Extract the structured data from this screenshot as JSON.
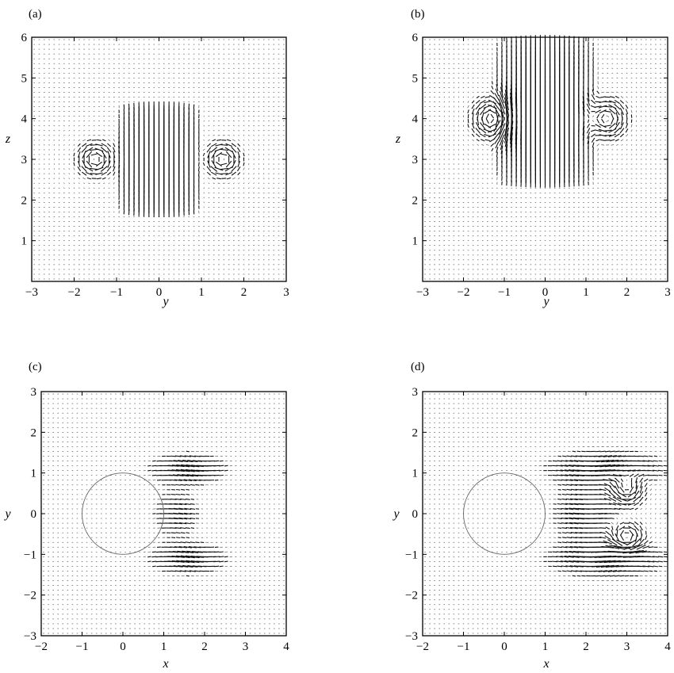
{
  "chart_data": [
    {
      "id": "a",
      "type": "quiver",
      "panel_label": "(a)",
      "xlabel": "y",
      "ylabel": "z",
      "xlim": [
        -3,
        3
      ],
      "ylim": [
        0,
        6
      ],
      "xticks": [
        -3,
        -2,
        -1,
        0,
        1,
        2,
        3
      ],
      "yticks": [
        1,
        2,
        3,
        4,
        5,
        6
      ],
      "xtick_labels": [
        "−3",
        "−2",
        "−1",
        "0",
        "1",
        "2",
        "3"
      ],
      "ytick_labels": [
        "1",
        "2",
        "3",
        "4",
        "5",
        "6"
      ],
      "grid_nx": 51,
      "grid_ny": 51,
      "features": [
        {
          "kind": "jet",
          "center": [
            0,
            3.3
          ],
          "half_width": 1.1,
          "bottom": 1.6,
          "top": 4.4,
          "peak_length": 0.6,
          "direction": "up"
        },
        {
          "kind": "vortex",
          "center": [
            -1.5,
            3.0
          ],
          "radius": 0.25
        },
        {
          "kind": "vortex",
          "center": [
            1.5,
            3.0
          ],
          "radius": 0.25
        }
      ],
      "circle": null
    },
    {
      "id": "b",
      "type": "quiver",
      "panel_label": "(b)",
      "xlabel": "y",
      "ylabel": "z",
      "xlim": [
        -3,
        3
      ],
      "ylim": [
        0,
        6
      ],
      "xticks": [
        -3,
        -2,
        -1,
        0,
        1,
        2,
        3
      ],
      "yticks": [
        1,
        2,
        3,
        4,
        5,
        6
      ],
      "xtick_labels": [
        "−3",
        "−2",
        "−1",
        "0",
        "1",
        "2",
        "3"
      ],
      "ytick_labels": [
        "1",
        "2",
        "3",
        "4",
        "5",
        "6"
      ],
      "grid_nx": 51,
      "grid_ny": 51,
      "features": [
        {
          "kind": "jet",
          "center": [
            0,
            4.2
          ],
          "half_width": 1.4,
          "bottom": 2.4,
          "top": 6.0,
          "peak_length": 0.6,
          "direction": "up"
        },
        {
          "kind": "vortex",
          "center": [
            -1.3,
            4.0
          ],
          "radius": 0.3
        },
        {
          "kind": "vortex",
          "center": [
            1.5,
            4.0
          ],
          "radius": 0.3
        }
      ],
      "circle": null
    },
    {
      "id": "c",
      "type": "quiver",
      "panel_label": "(c)",
      "xlabel": "x",
      "ylabel": "y",
      "xlim": [
        -2,
        4
      ],
      "ylim": [
        -3,
        3
      ],
      "xticks": [
        -2,
        -1,
        0,
        1,
        2,
        3,
        4
      ],
      "yticks": [
        -3,
        -2,
        -1,
        0,
        1,
        2,
        3
      ],
      "xtick_labels": [
        "−2",
        "−1",
        "0",
        "1",
        "2",
        "3",
        "4"
      ],
      "ytick_labels": [
        "−3",
        "−2",
        "−1",
        "0",
        "1",
        "2",
        "3"
      ],
      "grid_nx": 51,
      "grid_ny": 51,
      "features": [
        {
          "kind": "band",
          "center": [
            1.6,
            1.1
          ],
          "half_length": 0.8,
          "half_width": 0.35,
          "peak_length": 0.35
        },
        {
          "kind": "band",
          "center": [
            1.6,
            -1.1
          ],
          "half_length": 0.8,
          "half_width": 0.35,
          "peak_length": 0.35
        },
        {
          "kind": "band",
          "center": [
            1.3,
            0.0
          ],
          "half_length": 0.5,
          "half_width": 0.5,
          "peak_length": 0.25
        }
      ],
      "circle": {
        "center": [
          0,
          0
        ],
        "radius": 1
      }
    },
    {
      "id": "d",
      "type": "quiver",
      "panel_label": "(d)",
      "xlabel": "x",
      "ylabel": "y",
      "xlim": [
        -2,
        4
      ],
      "ylim": [
        -3,
        3
      ],
      "xticks": [
        -2,
        -1,
        0,
        1,
        2,
        3,
        4
      ],
      "yticks": [
        -3,
        -2,
        -1,
        0,
        1,
        2,
        3
      ],
      "xtick_labels": [
        "−2",
        "−1",
        "0",
        "1",
        "2",
        "3",
        "4"
      ],
      "ytick_labels": [
        "−3",
        "−2",
        "−1",
        "0",
        "1",
        "2",
        "3"
      ],
      "grid_nx": 51,
      "grid_ny": 51,
      "features": [
        {
          "kind": "band",
          "center": [
            2.5,
            1.1
          ],
          "half_length": 1.2,
          "half_width": 0.4,
          "peak_length": 0.4
        },
        {
          "kind": "band",
          "center": [
            2.5,
            -1.1
          ],
          "half_length": 1.2,
          "half_width": 0.4,
          "peak_length": 0.4
        },
        {
          "kind": "band",
          "center": [
            2.0,
            0.0
          ],
          "half_length": 0.7,
          "half_width": 0.6,
          "peak_length": 0.3
        },
        {
          "kind": "vortex",
          "center": [
            3.0,
            0.6
          ],
          "radius": 0.25
        },
        {
          "kind": "vortex",
          "center": [
            3.0,
            -0.6
          ],
          "radius": 0.25
        }
      ],
      "circle": {
        "center": [
          0,
          0
        ],
        "radius": 1
      }
    }
  ]
}
